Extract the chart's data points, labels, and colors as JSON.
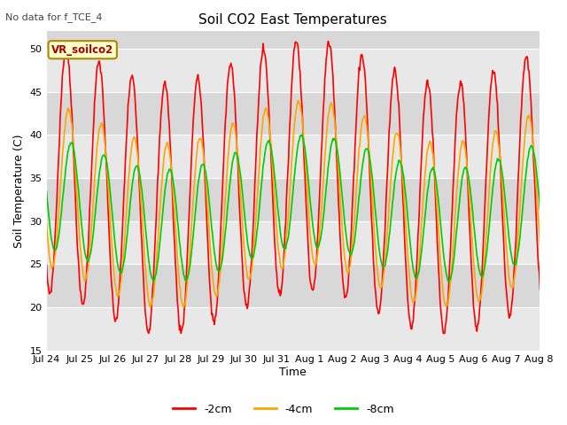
{
  "title": "Soil CO2 East Temperatures",
  "no_data_text": "No data for f_TCE_4",
  "xlabel": "Time",
  "ylabel": "Soil Temperature (C)",
  "ylim": [
    15,
    52
  ],
  "yticks": [
    15,
    20,
    25,
    30,
    35,
    40,
    45,
    50
  ],
  "legend_label": "VR_soilco2",
  "fig_bg_color": "#f0f0f0",
  "plot_bg_color": "#d8d8d8",
  "band_colors": [
    "#d0d0d0",
    "#e0e0e0"
  ],
  "series_colors": [
    "#ff0000",
    "#ffa500",
    "#00cc00"
  ],
  "series_labels": [
    "-2cm",
    "-4cm",
    "-8cm"
  ],
  "n_days": 16,
  "x_tick_labels": [
    "Jul 24",
    "Jul 25",
    "Jul 26",
    "Jul 27",
    "Jul 28",
    "Jul 29",
    "Jul 30",
    "Jul 31",
    "Aug 1",
    "Aug 2",
    "Aug 3",
    "Aug 4",
    "Aug 5",
    "Aug 6",
    "Aug 7",
    "Aug 8"
  ],
  "samples_per_day": 48,
  "mean_2cm": 34.0,
  "amp_2cm": 14.5,
  "phase_2cm": 0.35,
  "mean_4cm": 32.0,
  "amp_4cm": 9.5,
  "phase_4cm": 0.42,
  "mean_8cm": 31.5,
  "amp_8cm": 6.5,
  "phase_8cm": 0.5,
  "weekly_amp": 2.5,
  "weekly_phase": 2.0,
  "weekly_period": 8.5
}
